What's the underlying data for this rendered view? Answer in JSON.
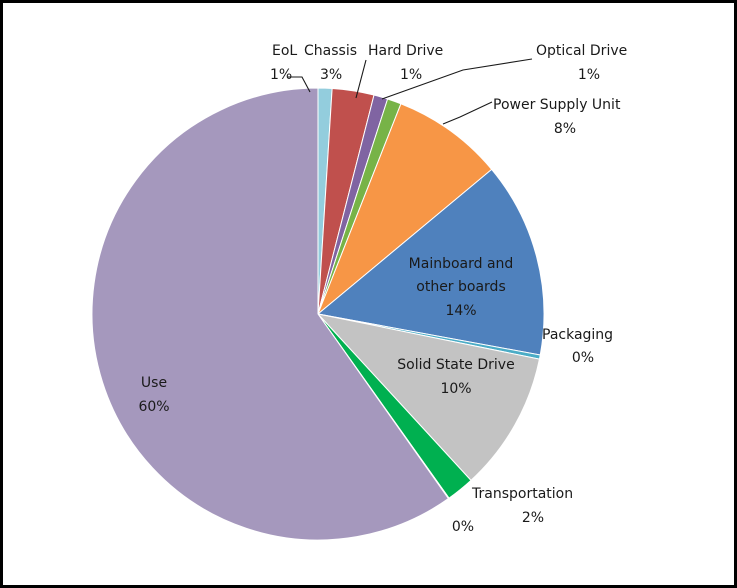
{
  "chart_data": {
    "type": "pie",
    "title": "",
    "slices": [
      {
        "name": "EoL",
        "display": "1%",
        "value": 1,
        "color": "#93cddd"
      },
      {
        "name": "Chassis",
        "display": "3%",
        "value": 3,
        "color": "#c0504d"
      },
      {
        "name": "Hard Drive",
        "display": "1%",
        "value": 1,
        "color": "#8064a2"
      },
      {
        "name": "Optical Drive",
        "display": "1%",
        "value": 1,
        "color": "#77b347"
      },
      {
        "name": "Power Supply Unit",
        "display": "8%",
        "value": 8,
        "color": "#f79646"
      },
      {
        "name": "Mainboard and other boards",
        "display": "14%",
        "value": 14,
        "color": "#4f81bd"
      },
      {
        "name": "Packaging",
        "display": "0%",
        "value": 0.3,
        "color": "#4bacc6"
      },
      {
        "name": "Solid State Drive",
        "display": "10%",
        "value": 10,
        "color": "#c3c3c3"
      },
      {
        "name": "Transportation",
        "display": "2%",
        "value": 2,
        "color": "#00b050"
      },
      {
        "name": "",
        "display": "0%",
        "value": 0.05,
        "color": "#1f497d"
      },
      {
        "name": "Use",
        "display": "60%",
        "value": 60,
        "color": "#a598bd"
      }
    ]
  },
  "labels": {
    "eol_name": "EoL",
    "eol_pct": "1%",
    "chassis_name": "Chassis",
    "chassis_pct": "3%",
    "hard_drive_name": "Hard Drive",
    "hard_drive_pct": "1%",
    "optical_drive_name": "Optical Drive",
    "optical_drive_pct": "1%",
    "psu_name": "Power Supply Unit",
    "psu_pct": "8%",
    "mainboard_line1": "Mainboard and",
    "mainboard_line2": "other boards",
    "mainboard_pct": "14%",
    "packaging_name": "Packaging",
    "packaging_pct": "0%",
    "ssd_name": "Solid State Drive",
    "ssd_pct": "10%",
    "transport_name": "Transportation",
    "transport_pct": "2%",
    "unnamed_pct": "0%",
    "use_name": "Use",
    "use_pct": "60%"
  }
}
